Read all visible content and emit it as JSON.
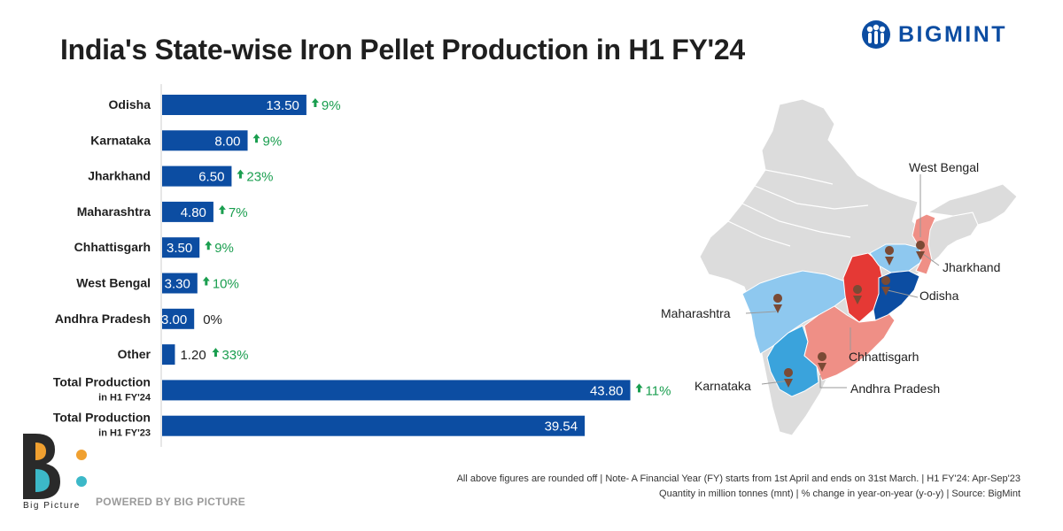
{
  "title": "India's State-wise Iron Pellet Production in H1 FY'24",
  "brand": {
    "name": "BIGMINT",
    "color": "#0c4da2"
  },
  "colors": {
    "bar": "#0c4da2",
    "growth": "#1a9e4f",
    "axis": "#cfcfcf"
  },
  "chart_data": {
    "type": "bar",
    "orientation": "horizontal",
    "xlim": [
      0,
      45
    ],
    "categories": [
      [
        "Odisha"
      ],
      [
        "Karnataka"
      ],
      [
        "Jharkhand"
      ],
      [
        "Maharashtra"
      ],
      [
        "Chhattisgarh"
      ],
      [
        "West Bengal"
      ],
      [
        "Andhra Pradesh"
      ],
      [
        "Other"
      ],
      [
        "Total Production",
        "in H1 FY'24"
      ],
      [
        "Total Production",
        "in H1 FY'23"
      ]
    ],
    "values": [
      13.5,
      8.0,
      6.5,
      4.8,
      3.5,
      3.3,
      3.0,
      1.2,
      43.8,
      39.54
    ],
    "value_labels": [
      "13.50",
      "8.00",
      "6.50",
      "4.80",
      "3.50",
      "3.30",
      "3.00",
      "1.20",
      "43.80",
      "39.54"
    ],
    "change_labels": [
      "9%",
      "9%",
      "23%",
      "7%",
      "9%",
      "10%",
      "0%",
      "33%",
      "11%",
      ""
    ],
    "change_up": [
      true,
      true,
      true,
      true,
      true,
      true,
      false,
      true,
      true,
      false
    ]
  },
  "map": {
    "labels": [
      "West Bengal",
      "Jharkhand",
      "Odisha",
      "Maharashtra",
      "Chhattisgarh",
      "Karnataka",
      "Andhra Pradesh"
    ],
    "colors": {
      "base": "#dcdcdc",
      "dark_blue": "#0c4da2",
      "light_blue": "#8ec8ef",
      "mid_blue": "#3aa3dc",
      "red": "#e53935",
      "salmon": "#ef8f86",
      "pin": "#7a4a35"
    }
  },
  "footnotes": [
    "All above figures are rounded off | Note- A Financial Year (FY) starts from 1st April and ends on 31st March. | H1 FY'24: Apr-Sep'23",
    "Quantity in million tonnes (mnt) | % change in year-on-year (y-o-y) | Source: BigMint"
  ],
  "footer": {
    "bp_text": "Big Picture",
    "powered": "POWERED BY BIG PICTURE"
  }
}
